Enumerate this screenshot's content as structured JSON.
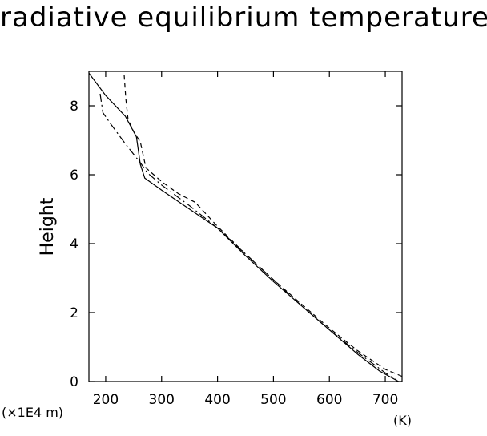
{
  "chart_data": {
    "type": "line",
    "title": "radiative equilibrium temperature",
    "ylabel": "Height",
    "x_unit": "(K)",
    "y_unit": "(×1E4 m)",
    "xlim": [
      170,
      730
    ],
    "ylim": [
      0,
      9
    ],
    "x_ticks": [
      200,
      300,
      400,
      500,
      600,
      700
    ],
    "y_ticks": [
      0,
      2,
      4,
      6,
      8
    ],
    "grid": false,
    "series": [
      {
        "style": "solid",
        "points": [
          [
            170,
            8.95
          ],
          [
            200,
            8.3
          ],
          [
            235,
            7.7
          ],
          [
            255,
            7.1
          ],
          [
            262,
            6.3
          ],
          [
            270,
            5.9
          ],
          [
            300,
            5.55
          ],
          [
            350,
            5.0
          ],
          [
            400,
            4.45
          ],
          [
            450,
            3.65
          ],
          [
            500,
            2.9
          ],
          [
            550,
            2.2
          ],
          [
            600,
            1.5
          ],
          [
            650,
            0.8
          ],
          [
            690,
            0.3
          ],
          [
            735,
            -0.1
          ]
        ]
      },
      {
        "style": "dashed",
        "points": [
          [
            233,
            8.9
          ],
          [
            236,
            8.2
          ],
          [
            240,
            7.6
          ],
          [
            250,
            7.25
          ],
          [
            262,
            6.95
          ],
          [
            272,
            6.2
          ],
          [
            300,
            5.8
          ],
          [
            330,
            5.45
          ],
          [
            360,
            5.2
          ],
          [
            400,
            4.5
          ],
          [
            450,
            3.7
          ],
          [
            500,
            2.95
          ],
          [
            550,
            2.25
          ],
          [
            600,
            1.55
          ],
          [
            650,
            0.9
          ],
          [
            700,
            0.35
          ],
          [
            730,
            0.15
          ]
        ]
      },
      {
        "style": "dashdot",
        "points": [
          [
            190,
            8.35
          ],
          [
            195,
            7.8
          ],
          [
            210,
            7.45
          ],
          [
            235,
            6.9
          ],
          [
            262,
            6.35
          ],
          [
            275,
            6.05
          ],
          [
            300,
            5.7
          ],
          [
            350,
            5.1
          ],
          [
            400,
            4.45
          ],
          [
            450,
            3.7
          ],
          [
            500,
            2.95
          ],
          [
            550,
            2.2
          ],
          [
            600,
            1.5
          ],
          [
            650,
            0.85
          ],
          [
            700,
            0.25
          ],
          [
            720,
            0.05
          ]
        ]
      }
    ]
  }
}
